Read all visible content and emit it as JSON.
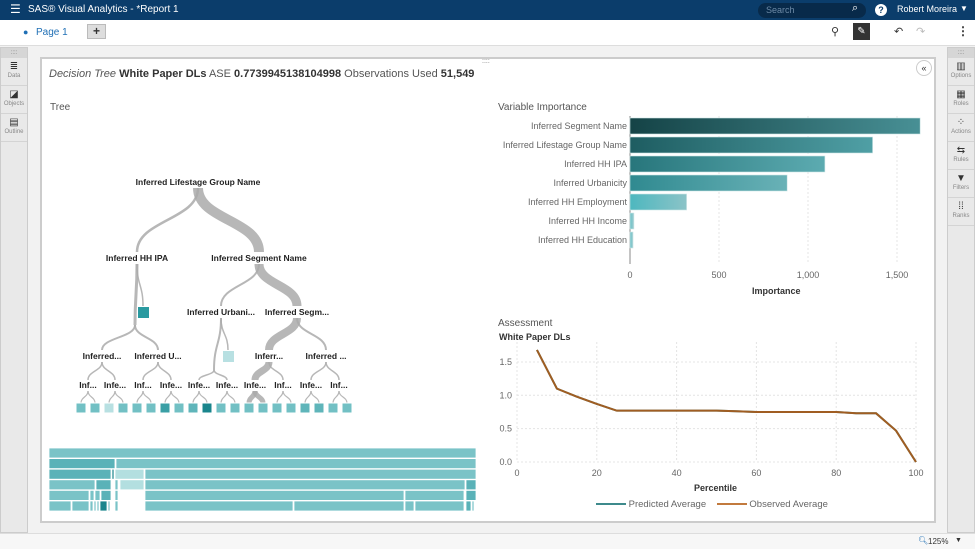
{
  "app": {
    "title": "SAS® Visual Analytics - *Report 1",
    "search_placeholder": "Search",
    "user": "Robert Moreira"
  },
  "toolbar": {
    "page_tab": "Page 1"
  },
  "left_sidebar": [
    {
      "label": "Data",
      "icon": "database-icon"
    },
    {
      "label": "Objects",
      "icon": "objects-icon"
    },
    {
      "label": "Outline",
      "icon": "outline-icon"
    }
  ],
  "right_sidebar": [
    {
      "label": "Options",
      "icon": "options-icon"
    },
    {
      "label": "Roles",
      "icon": "roles-icon"
    },
    {
      "label": "Actions",
      "icon": "actions-icon"
    },
    {
      "label": "Rules",
      "icon": "rules-icon"
    },
    {
      "label": "Filters",
      "icon": "filter-icon"
    },
    {
      "label": "Ranks",
      "icon": "ranks-icon"
    }
  ],
  "header": {
    "type": "Decision Tree",
    "target": "White Paper DLs",
    "ase_label": "ASE",
    "ase": "0.7739945138104998",
    "obs_label": "Observations Used",
    "obs": "51,549"
  },
  "tree": {
    "title": "Tree",
    "nodes": {
      "root": "Inferred Lifestage Group Name",
      "ipa": "Inferred HH IPA",
      "seg": "Inferred Segment Name",
      "urb": "Inferred Urbani...",
      "segm": "Inferred Segm...",
      "l3a": "Inferred...",
      "l3b": "Inferred U...",
      "l3c": "Inferr...",
      "l3d": "Inferred ...",
      "l4": [
        "Inf...",
        "Infe...",
        "Inf...",
        "Infe...",
        "Infe...",
        "Infe...",
        "Infe...",
        "Inf...",
        "Infe...",
        "Inf..."
      ]
    }
  },
  "zoom": "125%",
  "colors": {
    "header": "#0b3d6b",
    "bar_dark": "#0f4c52",
    "bar_light": "#8cc9cc",
    "observed": "#b5621e",
    "predicted": "#3e8a8c"
  },
  "chart_data": [
    {
      "type": "bar",
      "title": "Variable Importance",
      "orientation": "horizontal",
      "categories": [
        "Inferred Segment Name",
        "Inferred Lifestage Group Name",
        "Inferred HH IPA",
        "Inferred Urbanicity",
        "Inferred HH Employment",
        "Inferred HH Income",
        "Inferred HH Education"
      ],
      "values": [
        1630,
        1363,
        1095,
        883,
        318,
        22,
        17
      ],
      "xlabel": "Importance",
      "xlim": [
        0,
        1650
      ],
      "xticks": [
        "0",
        "500",
        "1,000",
        "1,500"
      ],
      "grid": true
    },
    {
      "type": "line",
      "title": "Assessment",
      "subtitle": "White Paper DLs",
      "xlabel": "Percentile",
      "xlim": [
        0,
        100
      ],
      "ylim": [
        0,
        1.7
      ],
      "xticks": [
        "0",
        "20",
        "40",
        "60",
        "80",
        "100"
      ],
      "yticks": [
        "0.0",
        "0.5",
        "1.0",
        "1.5"
      ],
      "grid": true,
      "legend": "bottom",
      "series": [
        {
          "name": "Predicted Average",
          "x": [
            5,
            10,
            15,
            20,
            25,
            30,
            40,
            50,
            55,
            60,
            70,
            80,
            85,
            90,
            95,
            100
          ],
          "y": [
            1.68,
            1.1,
            0.98,
            0.87,
            0.77,
            0.77,
            0.77,
            0.77,
            0.76,
            0.75,
            0.75,
            0.75,
            0.73,
            0.73,
            0.47,
            0.0
          ]
        },
        {
          "name": "Observed Average",
          "x": [
            5,
            10,
            15,
            20,
            25,
            30,
            40,
            50,
            55,
            60,
            70,
            80,
            85,
            90,
            95,
            100
          ],
          "y": [
            1.68,
            1.1,
            0.98,
            0.87,
            0.77,
            0.77,
            0.77,
            0.77,
            0.76,
            0.75,
            0.75,
            0.75,
            0.73,
            0.73,
            0.47,
            0.0
          ]
        }
      ]
    }
  ]
}
